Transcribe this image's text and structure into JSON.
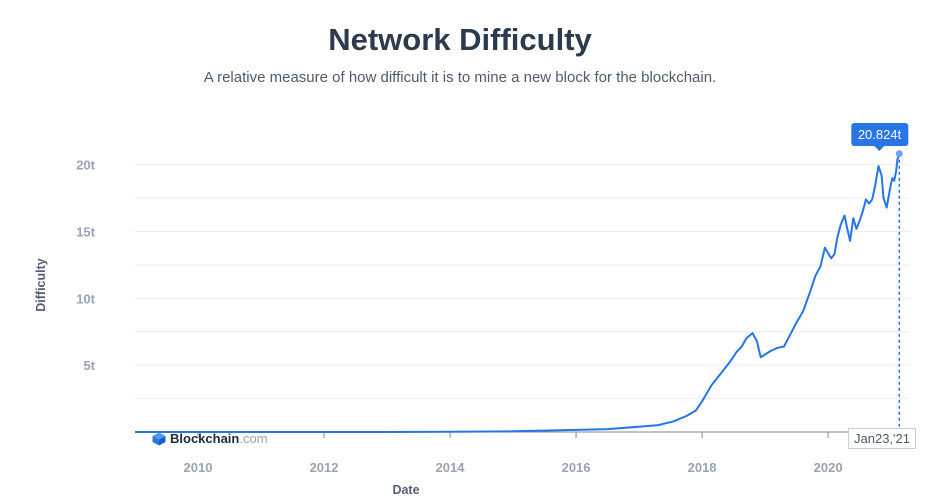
{
  "title": "Network Difficulty",
  "subtitle": "A relative measure of how difficult it is to mine a new block for the blockchain.",
  "watermark": {
    "brand": "Blockchain",
    "suffix": ".com",
    "icon": "blockchain-logo-icon"
  },
  "tooltip": {
    "value_label": "20.824t",
    "date_label": "Jan23,'21"
  },
  "colors": {
    "line": "#2676e6",
    "accent": "#2676e6",
    "grid": "#ebedf0",
    "axis": "#7f8896"
  },
  "chart_data": {
    "type": "line",
    "title": "Network Difficulty",
    "subtitle": "A relative measure of how difficult it is to mine a new block for the blockchain.",
    "xlabel": "Date",
    "ylabel": "Difficulty",
    "x_tick_labels": [
      "2010",
      "2012",
      "2014",
      "2016",
      "2018",
      "2020"
    ],
    "y_tick_labels": [
      "5t",
      "10t",
      "15t",
      "20t"
    ],
    "x_ticks": [
      2010,
      2012,
      2014,
      2016,
      2018,
      2020
    ],
    "y_ticks": [
      5,
      10,
      15,
      20
    ],
    "xlim": [
      2009.0,
      2021.3
    ],
    "ylim": [
      0,
      22
    ],
    "grid": true,
    "series": [
      {
        "values": [
          [
            2009.0,
            0
          ],
          [
            2013.0,
            0.0
          ],
          [
            2014.0,
            0.02
          ],
          [
            2015.0,
            0.05
          ],
          [
            2016.0,
            0.16
          ],
          [
            2016.5,
            0.22
          ],
          [
            2017.0,
            0.4
          ],
          [
            2017.3,
            0.52
          ],
          [
            2017.55,
            0.8
          ],
          [
            2017.75,
            1.2
          ],
          [
            2017.9,
            1.6
          ],
          [
            2018.0,
            2.3
          ],
          [
            2018.15,
            3.5
          ],
          [
            2018.3,
            4.4
          ],
          [
            2018.45,
            5.3
          ],
          [
            2018.55,
            6.0
          ],
          [
            2018.63,
            6.4
          ],
          [
            2018.7,
            7.0
          ],
          [
            2018.8,
            7.4
          ],
          [
            2018.87,
            6.8
          ],
          [
            2018.93,
            5.6
          ],
          [
            2019.0,
            5.8
          ],
          [
            2019.1,
            6.1
          ],
          [
            2019.2,
            6.3
          ],
          [
            2019.3,
            6.4
          ],
          [
            2019.4,
            7.3
          ],
          [
            2019.5,
            8.2
          ],
          [
            2019.6,
            9.0
          ],
          [
            2019.7,
            10.3
          ],
          [
            2019.8,
            11.7
          ],
          [
            2019.88,
            12.4
          ],
          [
            2019.95,
            13.8
          ],
          [
            2020.05,
            13.0
          ],
          [
            2020.1,
            13.3
          ],
          [
            2020.15,
            14.6
          ],
          [
            2020.2,
            15.5
          ],
          [
            2020.26,
            16.2
          ],
          [
            2020.3,
            15.3
          ],
          [
            2020.35,
            14.3
          ],
          [
            2020.4,
            16.0
          ],
          [
            2020.45,
            15.2
          ],
          [
            2020.5,
            15.8
          ],
          [
            2020.55,
            16.5
          ],
          [
            2020.6,
            17.4
          ],
          [
            2020.65,
            17.1
          ],
          [
            2020.7,
            17.4
          ],
          [
            2020.75,
            18.5
          ],
          [
            2020.8,
            19.9
          ],
          [
            2020.85,
            19.2
          ],
          [
            2020.88,
            17.5
          ],
          [
            2020.93,
            16.8
          ],
          [
            2020.98,
            18.1
          ],
          [
            2021.0,
            18.6
          ],
          [
            2021.02,
            19.0
          ],
          [
            2021.05,
            18.8
          ],
          [
            2021.08,
            19.5
          ],
          [
            2021.1,
            20.4
          ],
          [
            2021.13,
            20.824
          ]
        ]
      }
    ]
  }
}
